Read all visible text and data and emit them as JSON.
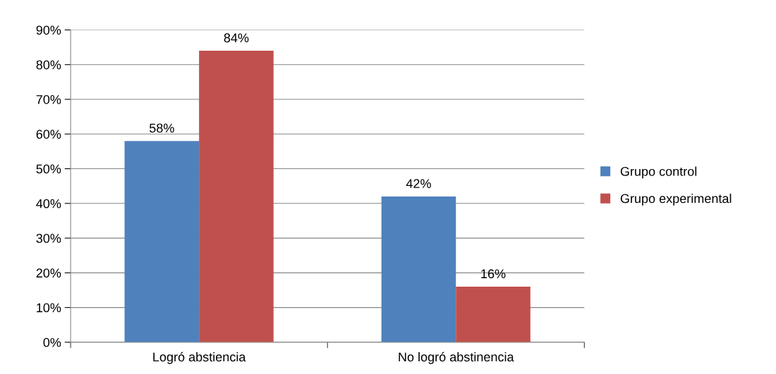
{
  "chart_data": {
    "type": "bar",
    "categories": [
      "Logró abstiencia",
      "No logró abstinencia"
    ],
    "series": [
      {
        "name": "Grupo control",
        "color": "#4f81bd",
        "values": [
          58,
          42
        ],
        "value_labels": [
          "58%",
          "42%"
        ]
      },
      {
        "name": "Grupo experimental",
        "color": "#c0504d",
        "values": [
          84,
          16
        ],
        "value_labels": [
          "84%",
          "16%"
        ]
      }
    ],
    "ylim": [
      0,
      90
    ],
    "yticks": [
      {
        "value": 0,
        "label": "0%"
      },
      {
        "value": 10,
        "label": "10%"
      },
      {
        "value": 20,
        "label": "20%"
      },
      {
        "value": 30,
        "label": "30%"
      },
      {
        "value": 40,
        "label": "40%"
      },
      {
        "value": 50,
        "label": "50%"
      },
      {
        "value": 60,
        "label": "60%"
      },
      {
        "value": 70,
        "label": "70%"
      },
      {
        "value": 80,
        "label": "80%"
      },
      {
        "value": 90,
        "label": "90%"
      }
    ],
    "grid": "y",
    "legend": "right"
  }
}
